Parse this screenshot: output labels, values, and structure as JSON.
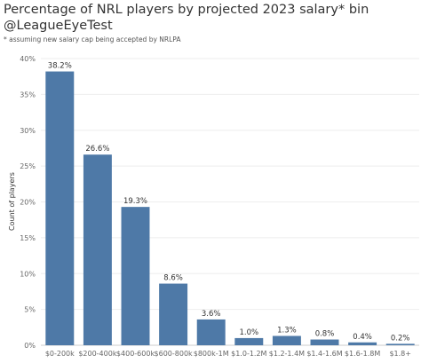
{
  "chart_data": {
    "type": "bar",
    "title": "Percentage of NRL players by projected 2023 salary* bin",
    "title_line2": "@LeagueEyeTest",
    "subtitle": "* assuming new salary cap being accepted by NRLPA",
    "xlabel": "",
    "ylabel": "Count of players",
    "ylim": [
      0,
      40
    ],
    "yticks": [
      "0%",
      "5%",
      "10%",
      "15%",
      "20%",
      "25%",
      "30%",
      "35%",
      "40%"
    ],
    "categories": [
      "$0-200k",
      "$200-400k",
      "$400-600k",
      "$600-800k",
      "$800k-1M",
      "$1.0-1.2M",
      "$1.2-1.4M",
      "$1.4-1.6M",
      "$1.6-1.8M",
      "$1.8+"
    ],
    "values": [
      38.2,
      26.6,
      19.3,
      8.6,
      3.6,
      1.0,
      1.3,
      0.8,
      0.4,
      0.2
    ],
    "data_labels": [
      "38.2%",
      "26.6%",
      "19.3%",
      "8.6%",
      "3.6%",
      "1.0%",
      "1.3%",
      "0.8%",
      "0.4%",
      "0.2%"
    ],
    "bar_color": "#4e79a7",
    "grid": true,
    "legend": "none"
  }
}
